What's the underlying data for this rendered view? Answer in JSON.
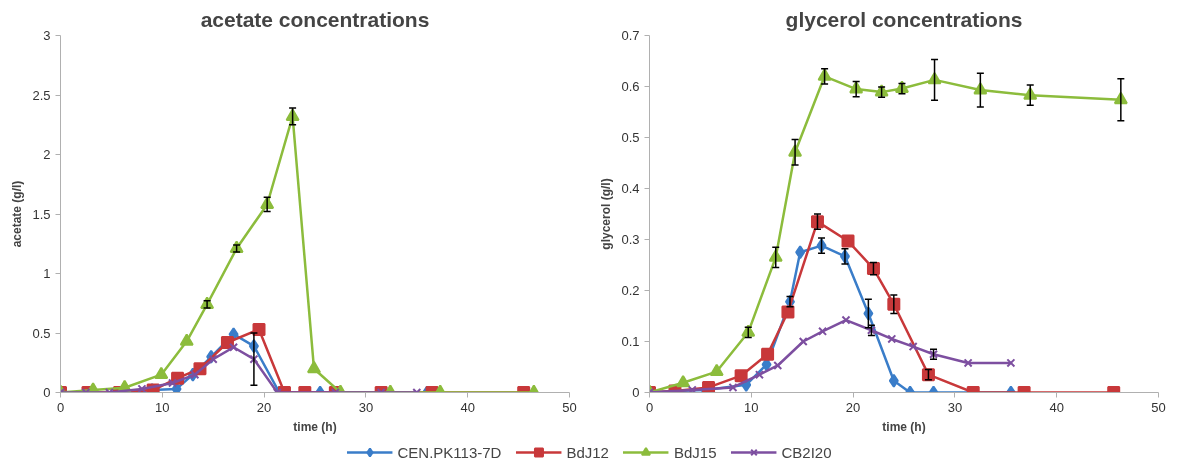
{
  "chart_data": [
    {
      "type": "line",
      "title": "acetate concentrations",
      "xlabel": "time (h)",
      "ylabel": "acetate (g/l)",
      "xlim": [
        0,
        50
      ],
      "ylim": [
        0,
        3
      ],
      "xticks": [
        0,
        10,
        20,
        30,
        40,
        50
      ],
      "yticks": [
        0,
        0.5,
        1,
        1.5,
        2,
        2.5,
        3
      ],
      "grid": false,
      "legend": "bottom",
      "line_style": "solid",
      "series": [
        {
          "name": "CEN.PK113-7D",
          "color": "#3a7dc9",
          "marker": "diamond",
          "x": [
            5.5,
            9,
            11.4,
            13,
            14.8,
            17,
            19,
            21.5,
            25.5,
            31.5,
            36
          ],
          "values": [
            0,
            0.02,
            0.03,
            0.15,
            0.3,
            0.49,
            0.39,
            0,
            0,
            0,
            0
          ]
        },
        {
          "name": "BdJ12",
          "color": "#c8383a",
          "marker": "square",
          "x": [
            0,
            2.7,
            5.8,
            9.1,
            11.5,
            13.7,
            16.4,
            19.5,
            22,
            24,
            27,
            31.5,
            36.5,
            45.5
          ],
          "values": [
            0,
            0,
            0,
            0.02,
            0.12,
            0.2,
            0.42,
            0.53,
            0,
            0,
            0,
            0,
            0,
            0
          ]
        },
        {
          "name": "BdJ15",
          "color": "#8cbc3c",
          "marker": "triangle",
          "x": [
            0,
            3.2,
            6.3,
            9.9,
            12.4,
            14.4,
            17.3,
            20.3,
            22.8,
            24.9,
            27.5,
            32.4,
            37.3,
            46.5
          ],
          "values": [
            0,
            0.02,
            0.04,
            0.15,
            0.43,
            0.74,
            1.21,
            1.58,
            2.32,
            0.2,
            0,
            0,
            0,
            0
          ],
          "errors": [
            null,
            null,
            null,
            null,
            null,
            0.03,
            0.03,
            0.06,
            0.07,
            null,
            null,
            null,
            null,
            null
          ]
        },
        {
          "name": "CB2I20",
          "color": "#7d4fa0",
          "marker": "x",
          "x": [
            0,
            2.5,
            4.8,
            8,
            11,
            13.2,
            15,
            17,
            19,
            21.3,
            27,
            31.5,
            35
          ],
          "values": [
            0,
            0,
            0,
            0.03,
            0.08,
            0.15,
            0.28,
            0.38,
            0.28,
            0,
            0,
            0,
            0
          ],
          "errors": [
            null,
            null,
            null,
            null,
            null,
            null,
            null,
            null,
            0.22,
            null,
            null,
            null,
            null
          ]
        }
      ]
    },
    {
      "type": "line",
      "title": "glycerol concentrations",
      "xlabel": "time (h)",
      "ylabel": "glycerol (g/l)",
      "xlim": [
        0,
        50
      ],
      "ylim": [
        0,
        0.7
      ],
      "xticks": [
        0,
        10,
        20,
        30,
        40,
        50
      ],
      "yticks": [
        0,
        0.1,
        0.2,
        0.3,
        0.4,
        0.5,
        0.6,
        0.7
      ],
      "grid": false,
      "line_style": "solid",
      "series": [
        {
          "color": "#3a7dc9",
          "marker": "diamond",
          "x": [
            0,
            2.5,
            5.5,
            9.5,
            11.5,
            13.8,
            14.8,
            16.9,
            19.2,
            21.5,
            24,
            25.6,
            27.9,
            35.5
          ],
          "values": [
            0,
            0.003,
            0.005,
            0.015,
            0.055,
            0.178,
            0.275,
            0.288,
            0.267,
            0.155,
            0.023,
            0,
            0,
            0
          ],
          "errors": [
            null,
            null,
            null,
            null,
            null,
            0.01,
            null,
            0.015,
            0.015,
            0.028,
            null,
            null,
            null,
            null
          ]
        },
        {
          "color": "#c8383a",
          "marker": "square",
          "x": [
            0,
            2.5,
            5.8,
            9,
            11.6,
            13.6,
            16.5,
            19.5,
            22,
            24,
            27.4,
            31.8,
            36.8,
            45.6
          ],
          "values": [
            0,
            0.003,
            0.01,
            0.033,
            0.075,
            0.158,
            0.335,
            0.297,
            0.243,
            0.173,
            0.035,
            0,
            0,
            0
          ],
          "errors": [
            null,
            null,
            null,
            null,
            null,
            null,
            0.015,
            null,
            0.012,
            0.018,
            0.01,
            null,
            null,
            null
          ]
        },
        {
          "color": "#8cbc3c",
          "marker": "triangle",
          "x": [
            0,
            3.3,
            6.6,
            9.7,
            12.4,
            14.3,
            17.2,
            20.3,
            22.8,
            24.8,
            28,
            32.5,
            37.4,
            46.3
          ],
          "values": [
            0,
            0.019,
            0.041,
            0.118,
            0.265,
            0.471,
            0.62,
            0.595,
            0.589,
            0.596,
            0.613,
            0.593,
            0.583,
            0.574
          ],
          "errors": [
            null,
            null,
            null,
            0.01,
            0.02,
            0.025,
            0.015,
            0.015,
            0.01,
            0.01,
            0.04,
            0.033,
            0.02,
            0.041
          ]
        },
        {
          "color": "#7d4fa0",
          "marker": "x",
          "x": [
            0,
            4.2,
            8.2,
            10.8,
            12.6,
            15.1,
            17,
            19.3,
            21.8,
            23.8,
            25.9,
            27.9,
            31.3,
            35.5
          ],
          "values": [
            0,
            0.005,
            0.01,
            0.035,
            0.053,
            0.1,
            0.12,
            0.142,
            0.122,
            0.105,
            0.09,
            0.075,
            0.058,
            0.058
          ],
          "errors": [
            null,
            null,
            null,
            null,
            null,
            null,
            null,
            null,
            0.01,
            null,
            null,
            0.01,
            null,
            null
          ]
        }
      ]
    }
  ]
}
